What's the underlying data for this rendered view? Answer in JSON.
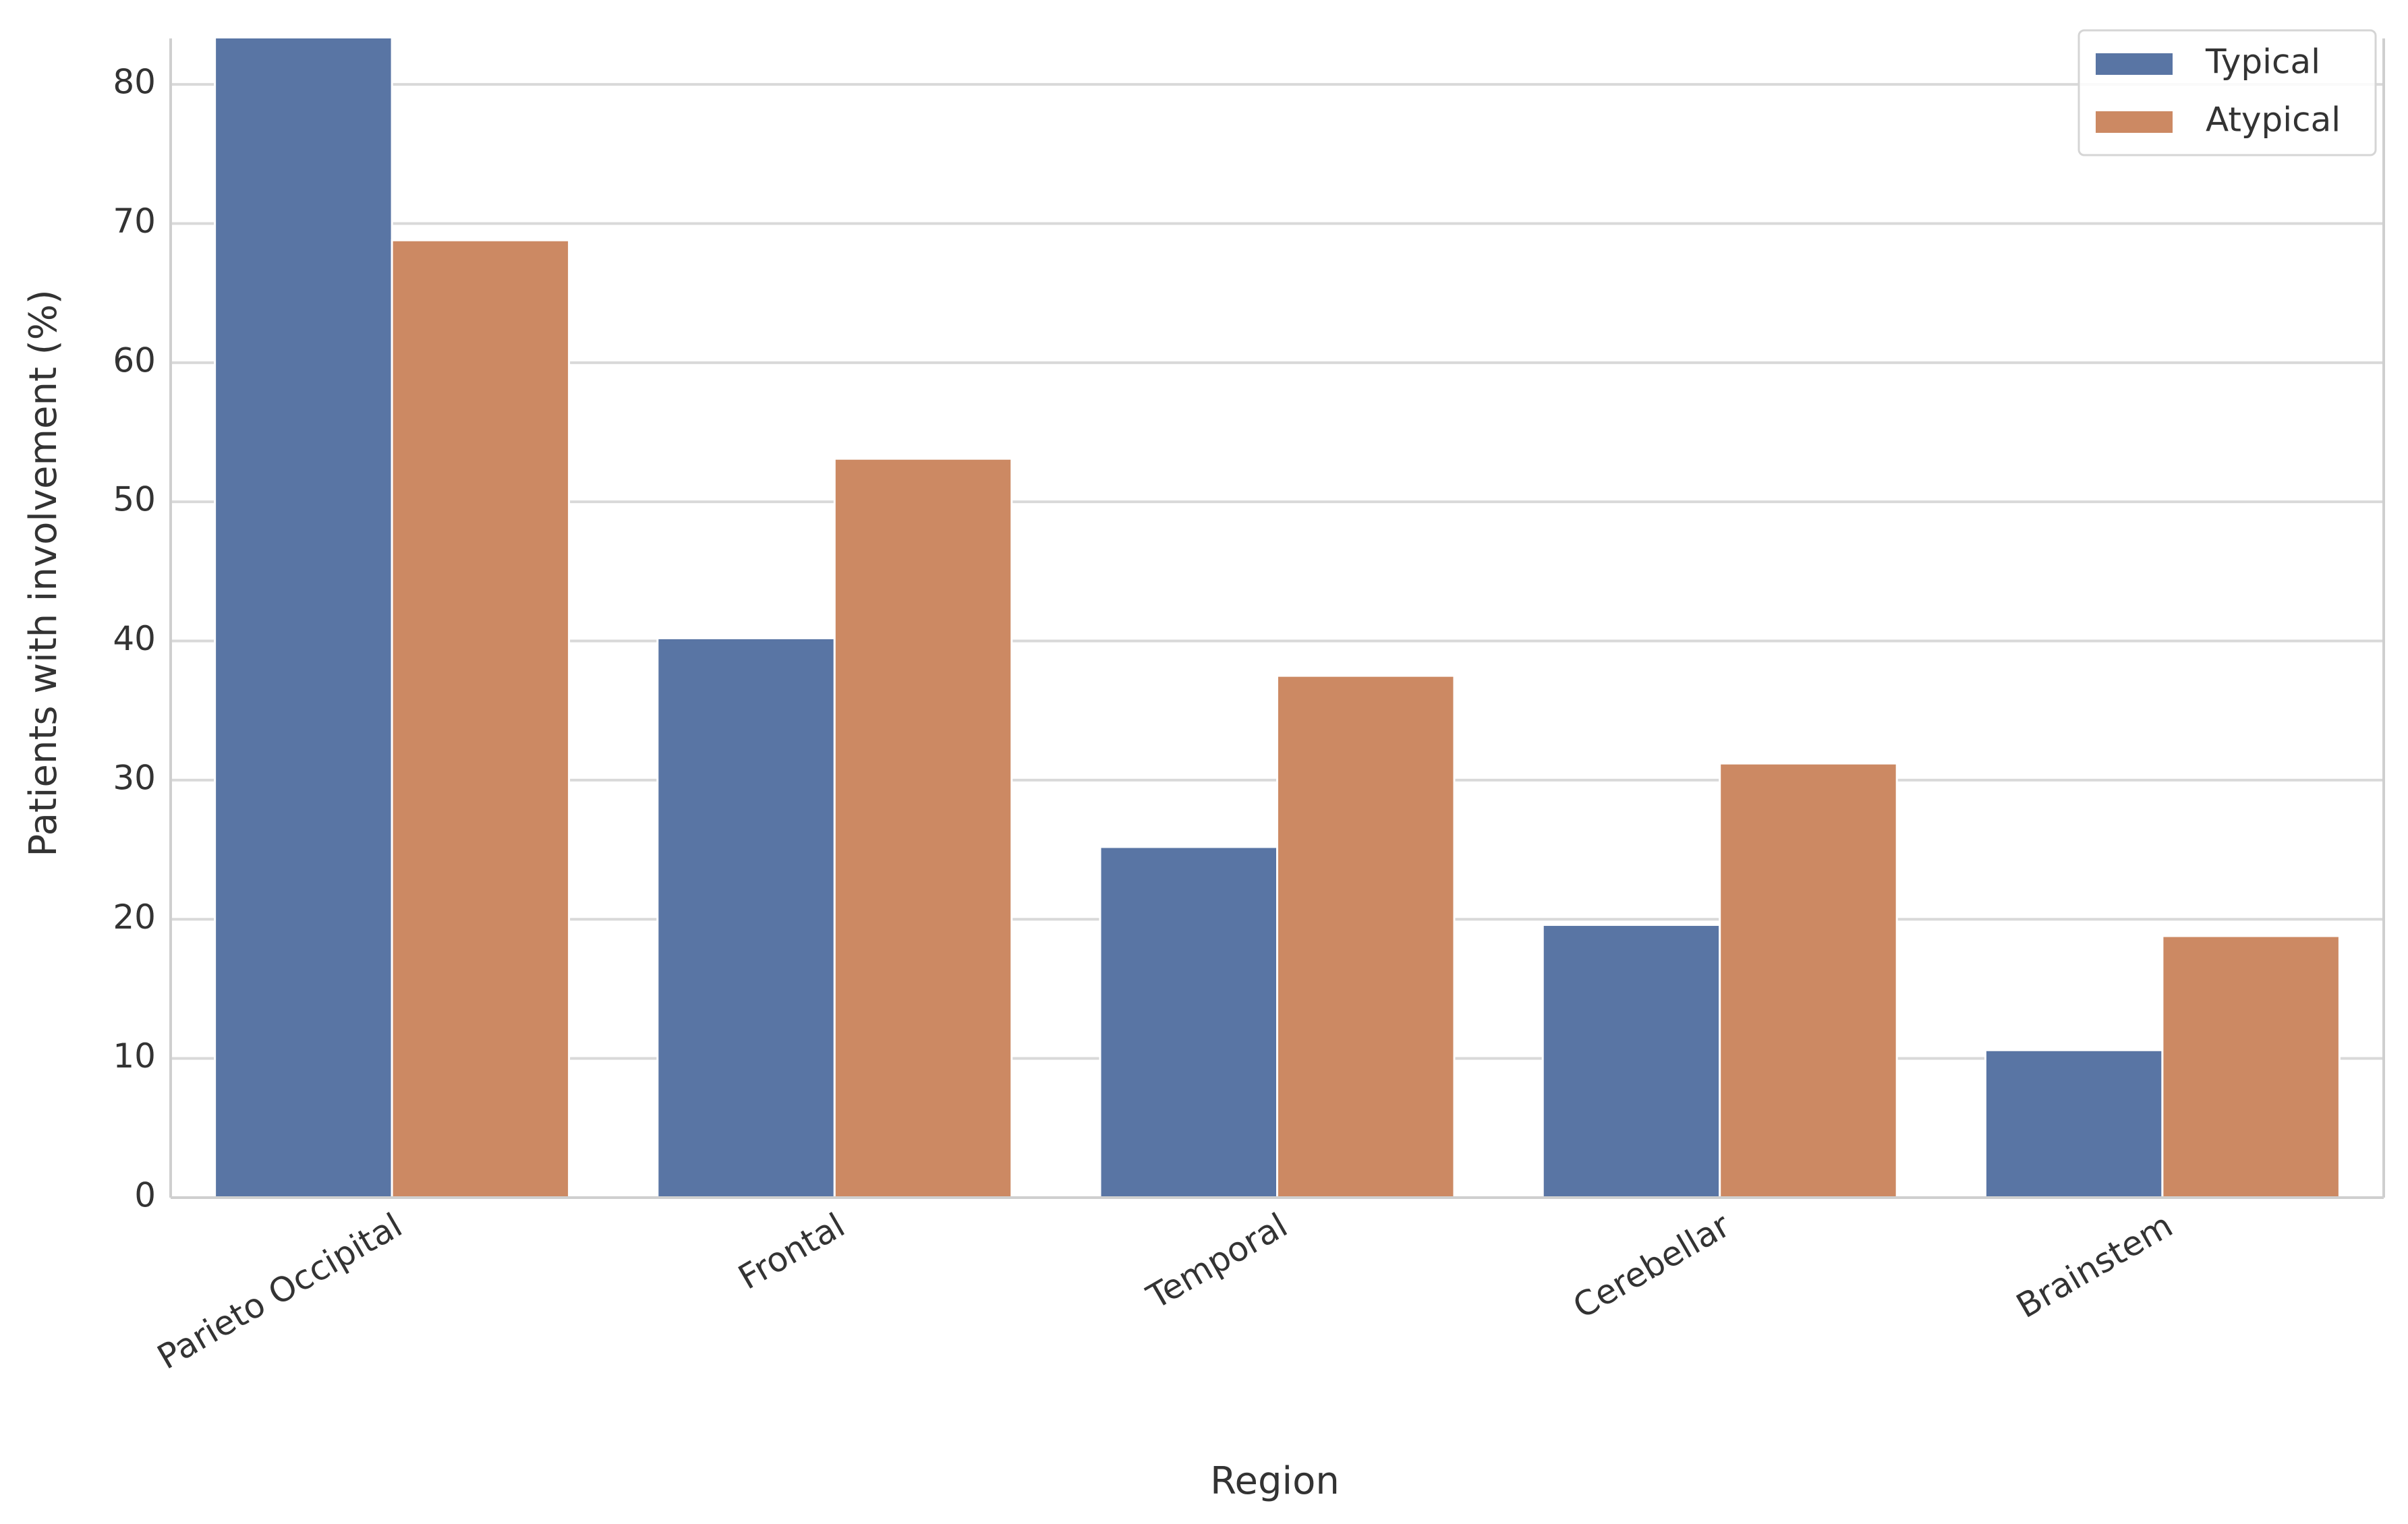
{
  "chart_data": {
    "type": "bar",
    "x_label": "Region",
    "y_label": "Patients with involvement (%)",
    "categories": [
      "Parieto Occipital",
      "Frontal",
      "Temporal",
      "Cerebellar",
      "Brainstem"
    ],
    "series": [
      {
        "name": "Typical",
        "color": "#5975a4",
        "values": [
          84,
          40.2,
          25.2,
          19.6,
          10.6
        ]
      },
      {
        "name": "Atypical",
        "color": "#cc8963",
        "values": [
          68.8,
          53.1,
          37.5,
          31.2,
          18.8
        ]
      }
    ],
    "ylim": [
      0,
      83.3
    ],
    "yticks": [
      0,
      10,
      20,
      30,
      40,
      50,
      60,
      70,
      80
    ],
    "grid": true,
    "legend": "upper right"
  }
}
